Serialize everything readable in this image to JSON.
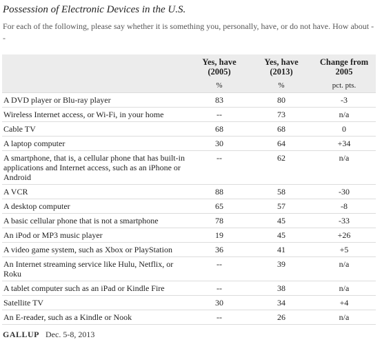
{
  "header": {
    "title": "Possession of Electronic Devices in the U.S.",
    "subtitle": "For each of the following, please say whether it is something you, personally, have, or do not have. How about --"
  },
  "table": {
    "columns": [
      "Yes, have (2005)",
      "Yes, have (2013)",
      "Change from 2005"
    ],
    "units": [
      "%",
      "%",
      "pct. pts."
    ],
    "rows": [
      [
        "A DVD player or Blu-ray player",
        "83",
        "80",
        "-3"
      ],
      [
        "Wireless Internet access, or Wi-Fi, in your home",
        "--",
        "73",
        "n/a"
      ],
      [
        "Cable TV",
        "68",
        "68",
        "0"
      ],
      [
        "A laptop computer",
        "30",
        "64",
        "+34"
      ],
      [
        "A smartphone, that is, a cellular phone that has built-in applications and Internet access, such as an iPhone or Android",
        "--",
        "62",
        "n/a"
      ],
      [
        "A VCR",
        "88",
        "58",
        "-30"
      ],
      [
        "A desktop computer",
        "65",
        "57",
        "-8"
      ],
      [
        "A basic cellular phone that is not a smartphone",
        "78",
        "45",
        "-33"
      ],
      [
        "An iPod or MP3 music player",
        "19",
        "45",
        "+26"
      ],
      [
        "A video game system, such as Xbox or PlayStation",
        "36",
        "41",
        "+5"
      ],
      [
        "An Internet streaming service like Hulu, Netflix, or Roku",
        "--",
        "39",
        "n/a"
      ],
      [
        "A tablet computer such as an iPad or Kindle Fire",
        "--",
        "38",
        "n/a"
      ],
      [
        "Satellite TV",
        "30",
        "34",
        "+4"
      ],
      [
        "An E-reader, such as a Kindle or Nook",
        "--",
        "26",
        "n/a"
      ]
    ]
  },
  "footer": {
    "source": "GALLUP",
    "date": "Dec. 5-8, 2013"
  }
}
